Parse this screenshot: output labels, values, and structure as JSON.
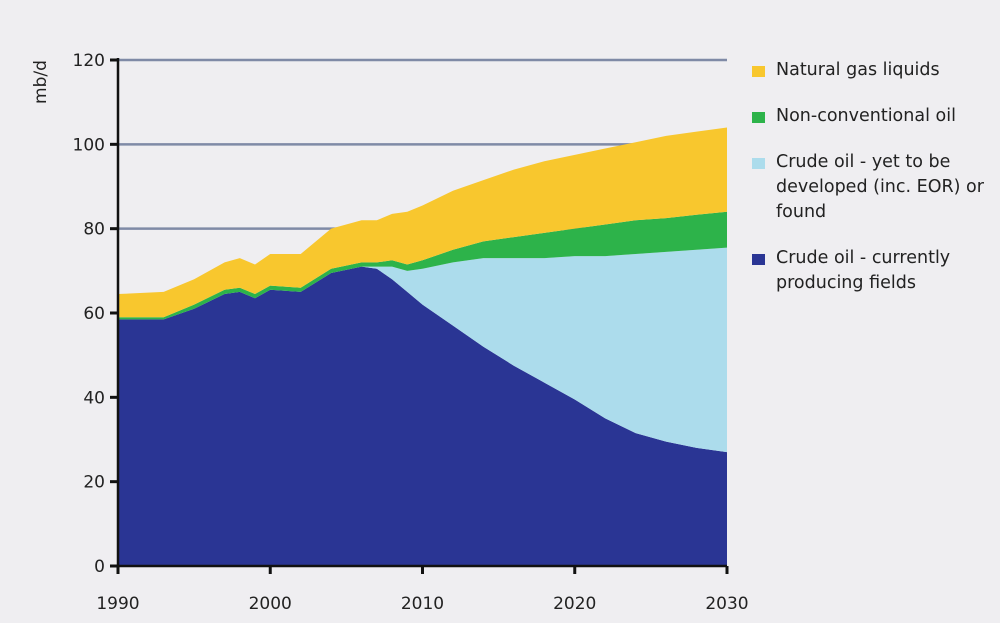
{
  "chart_data": {
    "type": "area",
    "stacked": true,
    "title": "",
    "xlabel": "",
    "ylabel": "mb/d",
    "xlim": [
      1990,
      2030
    ],
    "ylim": [
      0,
      120
    ],
    "x_ticks": [
      "1990",
      "2000",
      "2010",
      "2020",
      "2030"
    ],
    "y_ticks": [
      "0",
      "20",
      "40",
      "60",
      "80",
      "100",
      "120"
    ],
    "gridlines": [
      80,
      100,
      120
    ],
    "legend_position": "right",
    "x": [
      1990,
      1993,
      1995,
      1997,
      1998,
      1999,
      2000,
      2002,
      2004,
      2006,
      2007,
      2008,
      2009,
      2010,
      2012,
      2014,
      2016,
      2018,
      2020,
      2022,
      2024,
      2026,
      2028,
      2030
    ],
    "series": [
      {
        "name": "Crude oil - currently producing fields",
        "color": "#2a3594",
        "values": [
          58.5,
          58.5,
          61,
          64.5,
          65,
          63.5,
          65.5,
          65,
          69.5,
          71,
          70.5,
          68,
          65,
          62,
          57,
          52,
          47.5,
          43.5,
          39.5,
          35,
          31.5,
          29.5,
          28,
          27
        ]
      },
      {
        "name": "Crude oil - yet to be developed (inc. EOR) or found",
        "color": "#acdcec",
        "values": [
          0,
          0,
          0,
          0,
          0,
          0,
          0,
          0,
          0,
          0,
          0.5,
          3,
          5,
          8.5,
          15,
          21,
          25.5,
          29.5,
          34,
          38.5,
          42.5,
          45,
          47,
          48.5
        ]
      },
      {
        "name": "Non-conventional oil",
        "color": "#2db34a",
        "values": [
          0.5,
          0.5,
          1,
          1,
          1,
          1,
          1,
          1,
          1,
          1,
          1,
          1.5,
          1.5,
          2,
          3,
          4,
          5,
          6,
          6.5,
          7.5,
          8,
          8,
          8.3,
          8.5
        ]
      },
      {
        "name": "Natural gas liquids",
        "color": "#f8c72e",
        "values": [
          5.5,
          6,
          6,
          6.5,
          7,
          7,
          7.5,
          8,
          9.5,
          10,
          10,
          11,
          12.5,
          13,
          14,
          14.5,
          16,
          17,
          17.5,
          18,
          18.5,
          19.5,
          19.7,
          20
        ]
      }
    ],
    "legend": [
      {
        "label": "Natural gas liquids",
        "color": "#f8c72e"
      },
      {
        "label": "Non-conventional oil",
        "color": "#2db34a"
      },
      {
        "label": "Crude oil - yet to be developed (inc. EOR) or found",
        "color": "#acdcec"
      },
      {
        "label": "Crude oil - currently producing fields",
        "color": "#2a3594"
      }
    ]
  }
}
